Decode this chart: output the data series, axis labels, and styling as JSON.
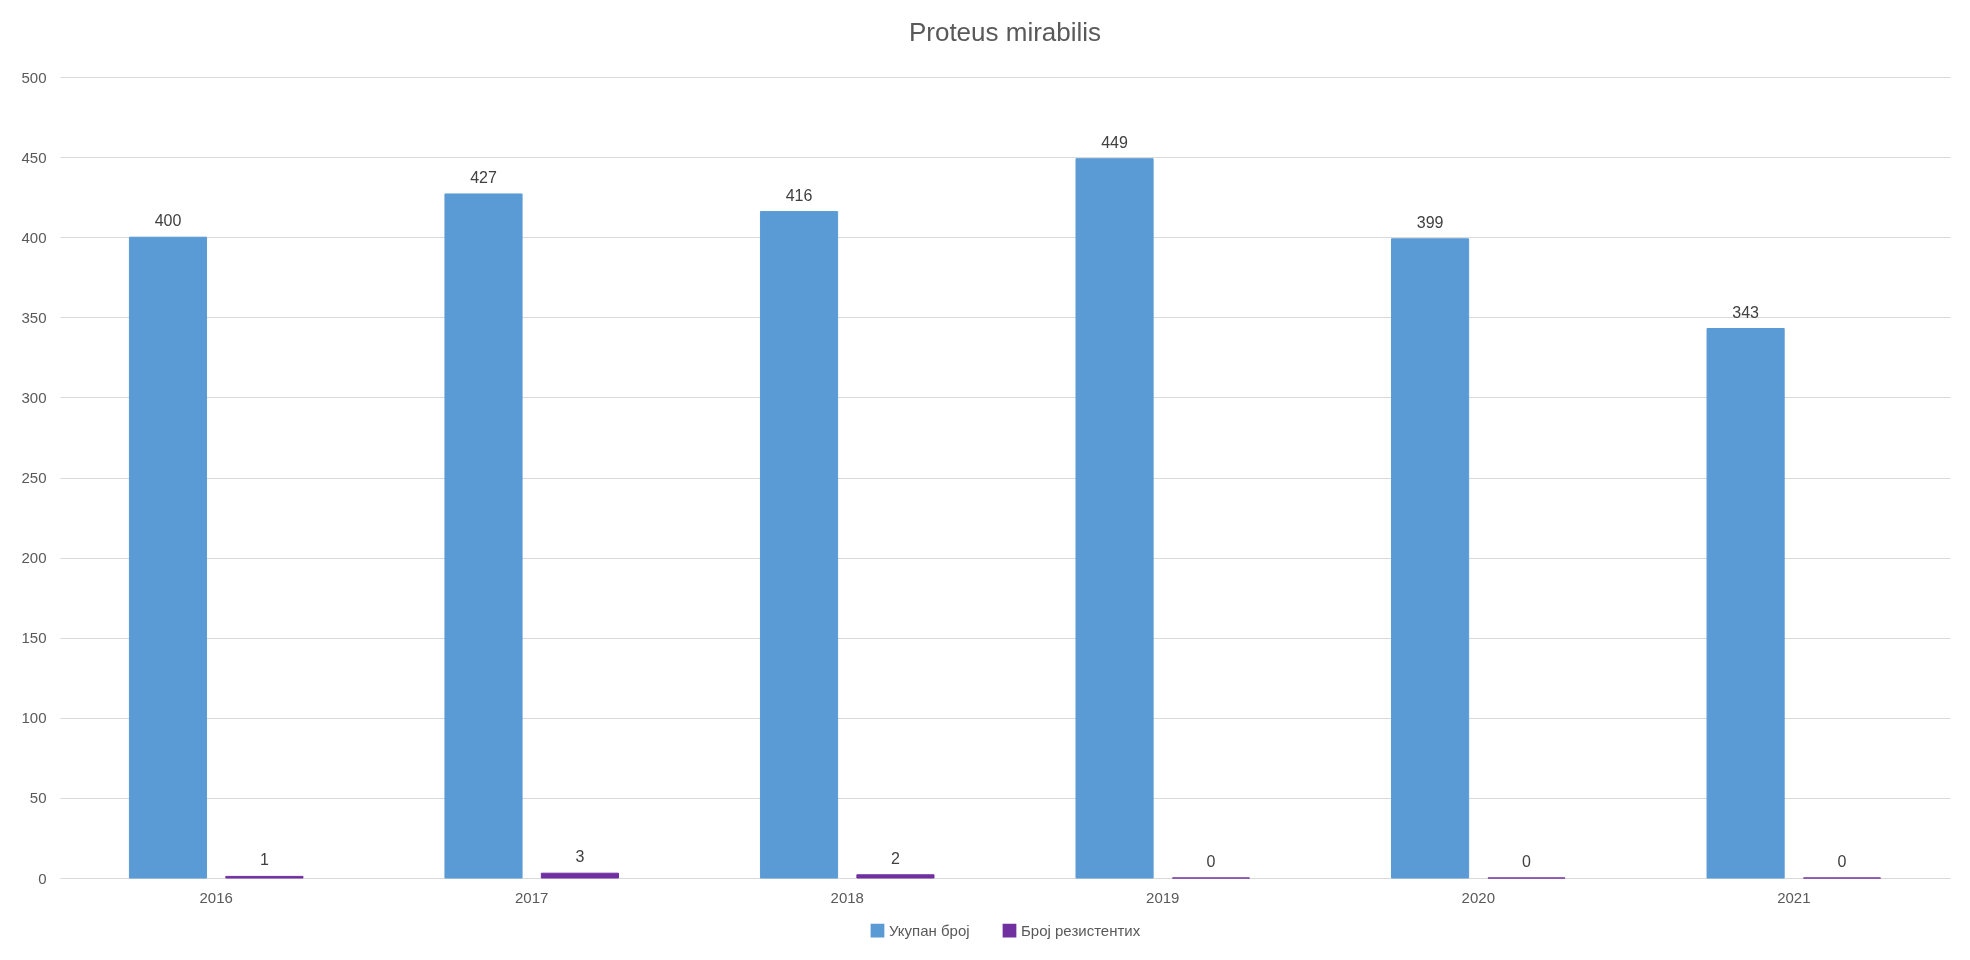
{
  "chart_data": {
    "type": "bar",
    "title": "Proteus mirabilis",
    "categories": [
      "2016",
      "2017",
      "2018",
      "2019",
      "2020",
      "2021"
    ],
    "series": [
      {
        "name": "Укупан број",
        "color": "#5b9bd5",
        "values": [
          400,
          427,
          416,
          449,
          399,
          343
        ]
      },
      {
        "name": "Број резистентих",
        "color": "#7030a0",
        "values": [
          1,
          3,
          2,
          0,
          0,
          0
        ]
      }
    ],
    "ylim": [
      0,
      500
    ],
    "yticks": [
      0,
      50,
      100,
      150,
      200,
      250,
      300,
      350,
      400,
      450,
      500
    ],
    "grid": "y",
    "legend": "bottom",
    "data_labels": true
  }
}
